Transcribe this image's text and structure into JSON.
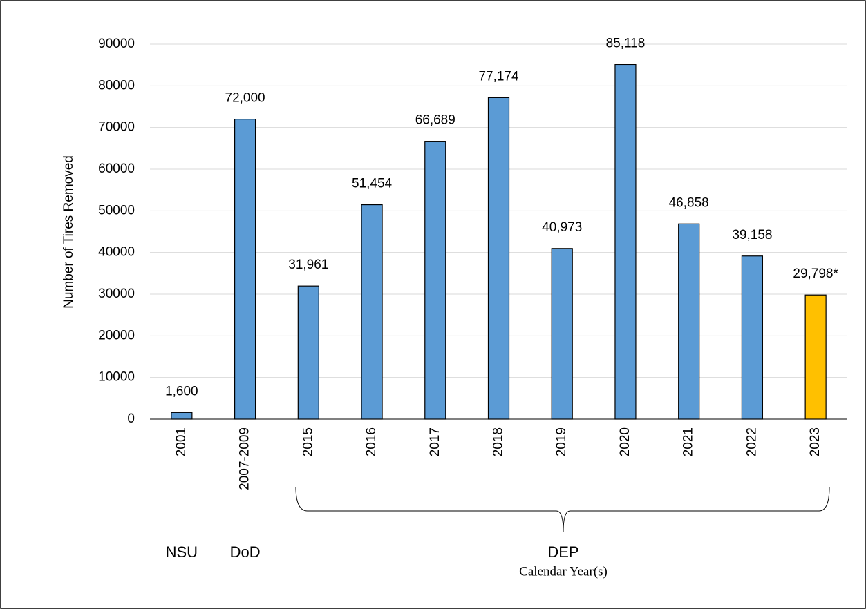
{
  "chart_data": {
    "type": "bar",
    "y_label": "Number of Tires Removed",
    "x_label": "Calendar Year(s)",
    "categories": [
      "2001",
      "2007-2009",
      "2015",
      "2016",
      "2017",
      "2018",
      "2019",
      "2020",
      "2021",
      "2022",
      "2023"
    ],
    "values": [
      1600,
      72000,
      31961,
      51454,
      66689,
      77174,
      40973,
      85118,
      46858,
      39158,
      29798
    ],
    "value_labels": [
      "1,600",
      "72,000",
      "31,961",
      "51,454",
      "66,689",
      "77,174",
      "40,973",
      "85,118",
      "46,858",
      "39,158",
      "29,798*"
    ],
    "colors": [
      "#5b9bd5",
      "#5b9bd5",
      "#5b9bd5",
      "#5b9bd5",
      "#5b9bd5",
      "#5b9bd5",
      "#5b9bd5",
      "#5b9bd5",
      "#5b9bd5",
      "#5b9bd5",
      "#ffc000"
    ],
    "group_labels": [
      "NSU",
      "DoD",
      "DEP"
    ],
    "ylim": [
      0,
      90000
    ],
    "yticks": [
      0,
      10000,
      20000,
      30000,
      40000,
      50000,
      60000,
      70000,
      80000,
      90000
    ],
    "grid": true
  }
}
